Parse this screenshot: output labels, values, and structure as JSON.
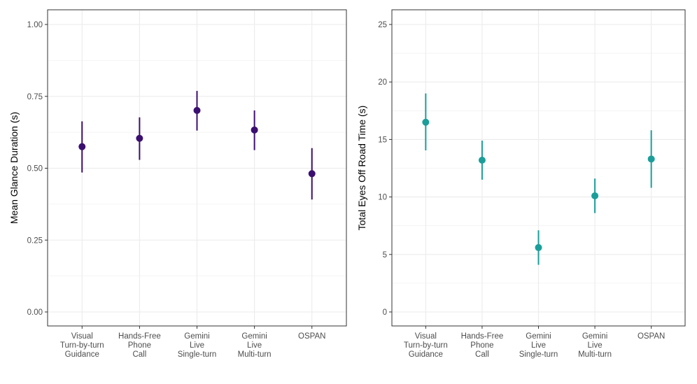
{
  "chart_data": [
    {
      "type": "scatter",
      "subtype": "pointrange",
      "categories": [
        [
          "Visual",
          "Turn-by-turn",
          "Guidance"
        ],
        [
          "Hands-Free",
          "Phone",
          "Call"
        ],
        [
          "Gemini",
          "Live",
          "Single-turn"
        ],
        [
          "Gemini",
          "Live",
          "Multi-turn"
        ],
        [
          "OSPAN"
        ]
      ],
      "values": [
        0.575,
        0.604,
        0.701,
        0.633,
        0.481
      ],
      "lower": [
        0.485,
        0.529,
        0.631,
        0.563,
        0.391
      ],
      "upper": [
        0.663,
        0.677,
        0.769,
        0.701,
        0.57
      ],
      "xlabel": "",
      "ylabel": "Mean Glance Duration (s)",
      "ylim": [
        0,
        1
      ],
      "yticks": [
        0,
        0.25,
        0.5,
        0.75,
        1.0
      ],
      "ytick_labels": [
        "0.00",
        "0.25",
        "0.50",
        "0.75",
        "1.00"
      ],
      "color": "#3b0f70",
      "grid": true
    },
    {
      "type": "scatter",
      "subtype": "pointrange",
      "categories": [
        [
          "Visual",
          "Turn-by-turn",
          "Guidance"
        ],
        [
          "Hands-Free",
          "Phone",
          "Call"
        ],
        [
          "Gemini",
          "Live",
          "Single-turn"
        ],
        [
          "Gemini",
          "Live",
          "Multi-turn"
        ],
        [
          "OSPAN"
        ]
      ],
      "values": [
        16.5,
        13.2,
        5.6,
        10.1,
        13.3
      ],
      "lower": [
        14.05,
        11.5,
        4.1,
        8.6,
        10.8
      ],
      "upper": [
        19.0,
        14.9,
        7.1,
        11.6,
        15.8
      ],
      "xlabel": "",
      "ylabel": "Total Eyes Off Road Time (s)",
      "ylim": [
        0,
        25
      ],
      "yticks": [
        0,
        5,
        10,
        15,
        20,
        25
      ],
      "ytick_labels": [
        "0",
        "5",
        "10",
        "15",
        "20",
        "25"
      ],
      "color": "#1b9e99",
      "grid": true
    }
  ]
}
